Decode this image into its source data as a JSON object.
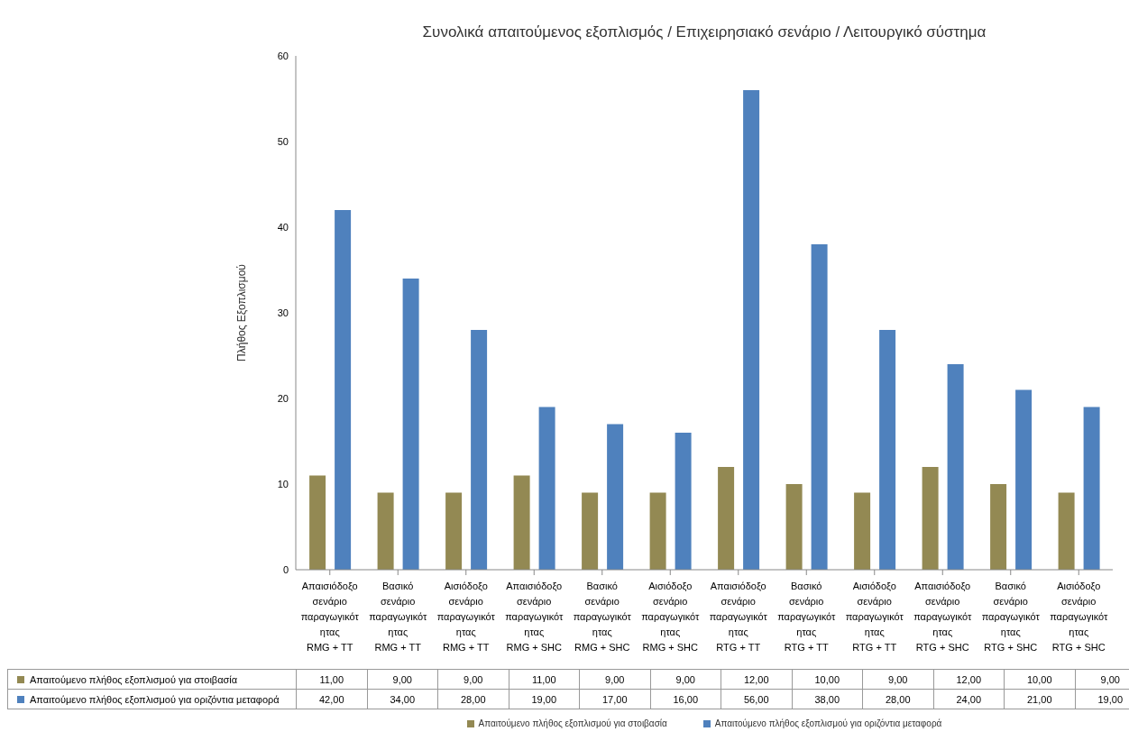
{
  "chart_data": {
    "type": "bar",
    "title": "Συνολικά απαιτούμενος εξοπλισμός / Επιχειρησιακό σενάριο / Λειτουργικό σύστημα",
    "ylabel": "Πλήθος Εξοπλισμού",
    "categories": [
      "Απαισιόδοξο σενάριο παραγωγικότητας\nRMG + TT",
      "Βασικό σενάριο παραγωγικότητας\nRMG + TT",
      "Αισιόδοξο σενάριο παραγωγικότητας\nRMG + TT",
      "Απαισιόδοξο σενάριο παραγωγικότητας\nRMG + SHC",
      "Βασικό σενάριο παραγωγικότητας\nRMG + SHC",
      "Αισιόδοξο σενάριο παραγωγικότητας\nRMG + SHC",
      "Απαισιόδοξο σενάριο παραγωγικότητας\nRTG + TT",
      "Βασικό σενάριο παραγωγικότητας\nRTG + TT",
      "Αισιόδοξο σενάριο παραγωγικότητας\nRTG + TT",
      "Απαισιόδοξο σενάριο παραγωγικότητας\nRTG + SHC",
      "Βασικό σενάριο παραγωγικότητας\nRTG + SHC",
      "Αισιόδοξο σενάριο παραγωγικότητας\nRTG + SHC"
    ],
    "series": [
      {
        "name": "Απαιτούμενο πλήθος εξοπλισμού για στοιβασία",
        "color": "#938953",
        "values": [
          11,
          9,
          9,
          11,
          9,
          9,
          12,
          10,
          9,
          12,
          10,
          9
        ],
        "value_labels": [
          "11,00",
          "9,00",
          "9,00",
          "11,00",
          "9,00",
          "9,00",
          "12,00",
          "10,00",
          "9,00",
          "12,00",
          "10,00",
          "9,00"
        ]
      },
      {
        "name": "Απαιτούμενο πλήθος εξοπλισμού για οριζόντια μεταφορά",
        "color": "#4f81bd",
        "values": [
          42,
          34,
          28,
          19,
          17,
          16,
          56,
          38,
          28,
          24,
          21,
          19
        ],
        "value_labels": [
          "42,00",
          "34,00",
          "28,00",
          "19,00",
          "17,00",
          "16,00",
          "56,00",
          "38,00",
          "28,00",
          "24,00",
          "21,00",
          "19,00"
        ]
      }
    ],
    "ylim": [
      0,
      60
    ],
    "yticks": [
      0,
      10,
      20,
      30,
      40,
      50,
      60
    ],
    "grid": false,
    "legend": "bottom"
  }
}
